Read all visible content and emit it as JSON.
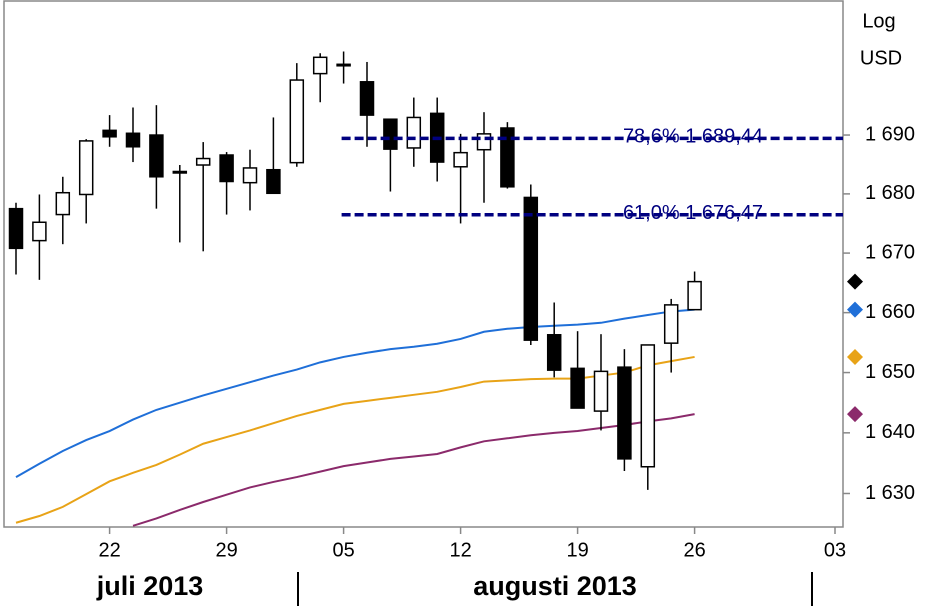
{
  "chart_data": {
    "type": "candlestick",
    "y_label_lines": [
      "Log",
      "USD"
    ],
    "log_scale": true,
    "x": [
      "2013-07-16",
      "2013-07-17",
      "2013-07-18",
      "2013-07-19",
      "2013-07-22",
      "2013-07-23",
      "2013-07-24",
      "2013-07-25",
      "2013-07-26",
      "2013-07-29",
      "2013-07-30",
      "2013-07-31",
      "2013-08-01",
      "2013-08-02",
      "2013-08-05",
      "2013-08-06",
      "2013-08-07",
      "2013-08-08",
      "2013-08-09",
      "2013-08-12",
      "2013-08-13",
      "2013-08-14",
      "2013-08-15",
      "2013-08-16",
      "2013-08-19",
      "2013-08-20",
      "2013-08-21",
      "2013-08-22",
      "2013-08-23",
      "2013-08-26"
    ],
    "open": [
      1677.5,
      1672.1,
      1676.5,
      1679.9,
      1690.8,
      1690.3,
      1690.0,
      1683.8,
      1684.9,
      1686.6,
      1681.9,
      1684.1,
      1685.3,
      1700.5,
      1702.1,
      1699.1,
      1692.7,
      1687.8,
      1693.7,
      1684.6,
      1687.5,
      1691.2,
      1679.4,
      1656.3,
      1650.7,
      1643.6,
      1650.9,
      1634.4,
      1654.9,
      1660.5
    ],
    "high": [
      1678.5,
      1679.9,
      1682.9,
      1689.3,
      1693.4,
      1694.7,
      1695.1,
      1684.9,
      1688.8,
      1687.1,
      1687.5,
      1693.0,
      1702.3,
      1704.0,
      1704.3,
      1702.5,
      1692.7,
      1696.4,
      1696.4,
      1690.2,
      1693.9,
      1692.2,
      1681.6,
      1661.7,
      1656.9,
      1656.4,
      1653.9,
      1654.6,
      1662.3,
      1666.9
    ],
    "low": [
      1666.4,
      1665.5,
      1671.5,
      1675.0,
      1688.0,
      1685.4,
      1677.5,
      1671.8,
      1670.3,
      1676.5,
      1677.2,
      1680.0,
      1684.6,
      1695.6,
      1698.8,
      1688.0,
      1680.4,
      1684.6,
      1682.1,
      1675.0,
      1678.5,
      1680.9,
      1654.6,
      1649.2,
      1644.1,
      1640.4,
      1633.7,
      1630.6,
      1650.0,
      1660.5
    ],
    "close": [
      1670.8,
      1675.2,
      1680.2,
      1689.0,
      1689.7,
      1688.0,
      1682.9,
      1683.6,
      1686.0,
      1682.1,
      1684.4,
      1680.1,
      1699.4,
      1703.3,
      1702.0,
      1693.4,
      1687.6,
      1693.0,
      1685.4,
      1687.0,
      1690.2,
      1681.2,
      1655.4,
      1650.4,
      1644.1,
      1650.2,
      1635.7,
      1654.6,
      1661.3,
      1665.2
    ],
    "up_color": "#ffffff",
    "down_color": "#000000",
    "lines": [
      {
        "color": "#1f6fd8",
        "values": [
          1632.7,
          1634.9,
          1637.0,
          1638.8,
          1640.3,
          1642.2,
          1643.8,
          1645.0,
          1646.2,
          1647.3,
          1648.4,
          1649.5,
          1650.5,
          1651.7,
          1652.6,
          1653.3,
          1653.9,
          1654.3,
          1654.8,
          1655.6,
          1656.8,
          1657.3,
          1657.6,
          1657.8,
          1658.0,
          1658.3,
          1659.0,
          1659.6,
          1660.2,
          1660.5
        ]
      },
      {
        "color": "#e8a317",
        "values": [
          1625.2,
          1626.3,
          1627.8,
          1629.9,
          1632.0,
          1633.4,
          1634.7,
          1636.4,
          1638.2,
          1639.3,
          1640.4,
          1641.6,
          1642.8,
          1643.8,
          1644.8,
          1645.3,
          1645.8,
          1646.3,
          1646.8,
          1647.6,
          1648.5,
          1648.7,
          1648.9,
          1649.0,
          1649.0,
          1649.5,
          1650.0,
          1651.2,
          1651.9,
          1652.6
        ]
      },
      {
        "color": "#8b2a6b",
        "values": [
          null,
          null,
          null,
          null,
          null,
          1624.7,
          1625.9,
          1627.3,
          1628.6,
          1629.8,
          1631.0,
          1631.9,
          1632.7,
          1633.6,
          1634.5,
          1635.1,
          1635.7,
          1636.1,
          1636.5,
          1637.6,
          1638.6,
          1639.1,
          1639.6,
          1640.0,
          1640.3,
          1640.8,
          1641.3,
          1641.9,
          1642.4,
          1643.1
        ]
      }
    ],
    "levels": [
      {
        "label": "78,6% 1 689,44",
        "value": 1689.44,
        "from": "2013-08-05",
        "color": "#000080"
      },
      {
        "label": "61,0% 1 676,47",
        "value": 1676.47,
        "from": "2013-08-05",
        "color": "#000080"
      }
    ],
    "ylim": [
      1624.5,
      1713
    ],
    "yticks": [
      {
        "value": 1630,
        "label": "1 630"
      },
      {
        "value": 1640,
        "label": "1 640"
      },
      {
        "value": 1650,
        "label": "1 650"
      },
      {
        "value": 1660,
        "label": "1 660"
      },
      {
        "value": 1670,
        "label": "1 670"
      },
      {
        "value": 1680,
        "label": "1 680"
      },
      {
        "value": 1690,
        "label": "1 690"
      }
    ],
    "xticks": [
      {
        "value": "2013-07-22",
        "label": "22"
      },
      {
        "value": "2013-07-29",
        "label": "29"
      },
      {
        "value": "2013-08-05",
        "label": "05"
      },
      {
        "value": "2013-08-12",
        "label": "12"
      },
      {
        "value": "2013-08-19",
        "label": "19"
      },
      {
        "value": "2013-08-26",
        "label": "26"
      },
      {
        "value": "2013-09-03",
        "label": "03"
      }
    ],
    "months": [
      "juli 2013",
      "augusti 2013"
    ]
  }
}
